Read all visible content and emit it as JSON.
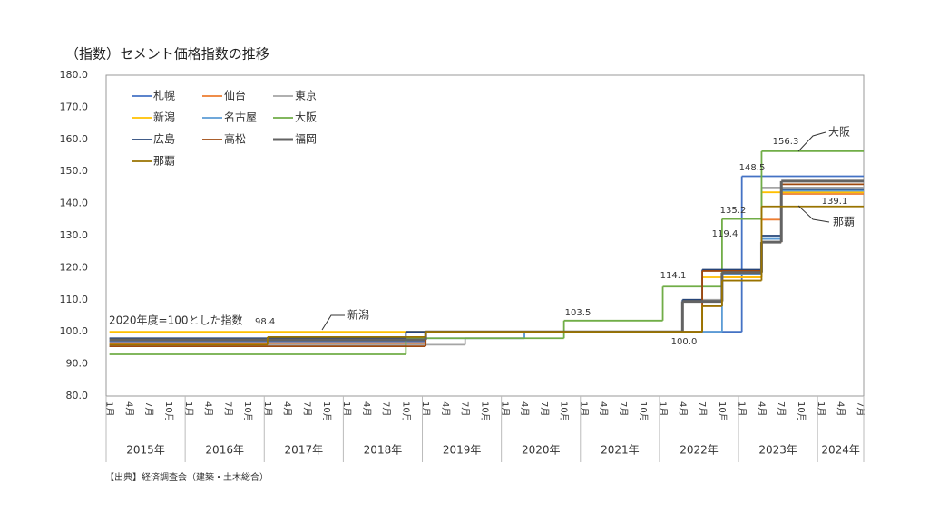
{
  "chart_data": {
    "type": "step-line",
    "title": "（指数）セメント価格指数の推移",
    "source": "【出典】経済調査会（建築・土木総合）",
    "xlim": [
      "2015-01",
      "2024-07"
    ],
    "ylim": [
      80,
      180
    ],
    "yticks": [
      {
        "value": 80,
        "label": "80.0"
      },
      {
        "value": 90,
        "label": "90.0"
      },
      {
        "value": 100,
        "label": "100.0"
      },
      {
        "value": 110,
        "label": "110.0"
      },
      {
        "value": 120,
        "label": "120.0"
      },
      {
        "value": 130,
        "label": "130.0"
      },
      {
        "value": 140,
        "label": "140.0"
      },
      {
        "value": 150,
        "label": "150.0"
      },
      {
        "value": 160,
        "label": "160.0"
      },
      {
        "value": 170,
        "label": "170.0"
      },
      {
        "value": 180,
        "label": "180.0"
      }
    ],
    "xticks": [
      {
        "value": "2015-01",
        "label": "1月"
      },
      {
        "value": "2015-04",
        "label": "4月"
      },
      {
        "value": "2015-07",
        "label": "7月"
      },
      {
        "value": "2015-10",
        "label": "10月"
      },
      {
        "value": "2016-01",
        "label": "1月"
      },
      {
        "value": "2016-04",
        "label": "4月"
      },
      {
        "value": "2016-07",
        "label": "7月"
      },
      {
        "value": "2016-10",
        "label": "10月"
      },
      {
        "value": "2017-01",
        "label": "1月"
      },
      {
        "value": "2017-04",
        "label": "4月"
      },
      {
        "value": "2017-07",
        "label": "7月"
      },
      {
        "value": "2017-10",
        "label": "10月"
      },
      {
        "value": "2018-01",
        "label": "1月"
      },
      {
        "value": "2018-04",
        "label": "4月"
      },
      {
        "value": "2018-07",
        "label": "7月"
      },
      {
        "value": "2018-10",
        "label": "10月"
      },
      {
        "value": "2019-01",
        "label": "1月"
      },
      {
        "value": "2019-04",
        "label": "4月"
      },
      {
        "value": "2019-07",
        "label": "7月"
      },
      {
        "value": "2019-10",
        "label": "10月"
      },
      {
        "value": "2020-01",
        "label": "1月"
      },
      {
        "value": "2020-04",
        "label": "4月"
      },
      {
        "value": "2020-07",
        "label": "7月"
      },
      {
        "value": "2020-10",
        "label": "10月"
      },
      {
        "value": "2021-01",
        "label": "1月"
      },
      {
        "value": "2021-04",
        "label": "4月"
      },
      {
        "value": "2021-07",
        "label": "7月"
      },
      {
        "value": "2021-10",
        "label": "10月"
      },
      {
        "value": "2022-01",
        "label": "1月"
      },
      {
        "value": "2022-04",
        "label": "4月"
      },
      {
        "value": "2022-07",
        "label": "7月"
      },
      {
        "value": "2022-10",
        "label": "10月"
      },
      {
        "value": "2023-01",
        "label": "1月"
      },
      {
        "value": "2023-04",
        "label": "4月"
      },
      {
        "value": "2023-07",
        "label": "7月"
      },
      {
        "value": "2023-10",
        "label": "10月"
      },
      {
        "value": "2024-01",
        "label": "1月"
      },
      {
        "value": "2024-04",
        "label": "4月"
      },
      {
        "value": "2024-07",
        "label": "7月"
      }
    ],
    "year_labels": [
      {
        "value": "2015",
        "label": "2015年"
      },
      {
        "value": "2016",
        "label": "2016年"
      },
      {
        "value": "2017",
        "label": "2017年"
      },
      {
        "value": "2018",
        "label": "2018年"
      },
      {
        "value": "2019",
        "label": "2019年"
      },
      {
        "value": "2020",
        "label": "2020年"
      },
      {
        "value": "2021",
        "label": "2021年"
      },
      {
        "value": "2022",
        "label": "2022年"
      },
      {
        "value": "2023",
        "label": "2023年"
      },
      {
        "value": "2024",
        "label": "2024年"
      }
    ],
    "series": [
      {
        "name": "札幌",
        "color": "#4472c4",
        "x": [
          "2015-01",
          "2019-01",
          "2023-01"
        ],
        "values": [
          97,
          100,
          148.5
        ]
      },
      {
        "name": "仙台",
        "color": "#ed7d31",
        "x": [
          "2015-01",
          "2019-01",
          "2022-07",
          "2022-10",
          "2023-04",
          "2023-07"
        ],
        "values": [
          96.5,
          100,
          108,
          117,
          135,
          143
        ]
      },
      {
        "name": "東京",
        "color": "#a5a5a5",
        "x": [
          "2015-01",
          "2019-07",
          "2020-04",
          "2022-04",
          "2022-10",
          "2023-04"
        ],
        "values": [
          96,
          98,
          100,
          110,
          118,
          145
        ]
      },
      {
        "name": "新潟",
        "color": "#ffc000",
        "x": [
          "2015-01",
          "2022-07",
          "2023-04"
        ],
        "values": [
          100,
          117,
          143.5
        ]
      },
      {
        "name": "名古屋",
        "color": "#5b9bd5",
        "x": [
          "2015-01",
          "2018-10",
          "2020-04",
          "2022-10",
          "2023-04",
          "2023-07"
        ],
        "values": [
          95.5,
          98,
          100,
          118,
          129,
          144
        ]
      },
      {
        "name": "大阪",
        "color": "#70ad47",
        "x": [
          "2015-01",
          "2018-10",
          "2020-10",
          "2022-01",
          "2022-10",
          "2023-04"
        ],
        "values": [
          93,
          98,
          103.5,
          114.1,
          135.2,
          156.3
        ]
      },
      {
        "name": "広島",
        "color": "#264478",
        "x": [
          "2015-01",
          "2018-10",
          "2022-04",
          "2022-07",
          "2023-04",
          "2023-07"
        ],
        "values": [
          98,
          100,
          110,
          119.4,
          130,
          144.5
        ]
      },
      {
        "name": "高松",
        "color": "#9e480e",
        "x": [
          "2015-01",
          "2019-01",
          "2022-07",
          "2023-04",
          "2023-07"
        ],
        "values": [
          95.5,
          100,
          119,
          128,
          146
        ]
      },
      {
        "name": "福岡",
        "color": "#636363",
        "x": [
          "2015-01",
          "2019-01",
          "2022-04",
          "2022-10",
          "2023-04",
          "2023-07"
        ],
        "values": [
          97.5,
          100,
          109.5,
          118.5,
          128,
          147
        ]
      },
      {
        "name": "那覇",
        "color": "#997300",
        "x": [
          "2015-01",
          "2017-01",
          "2019-01",
          "2022-07",
          "2022-10",
          "2023-04"
        ],
        "values": [
          96,
          98.4,
          100,
          108,
          116,
          139.1
        ]
      }
    ],
    "annotations": [
      "2020年度=100とした指数",
      "98.4",
      "新潟",
      "103.5",
      "114.1",
      "100.0",
      "119.4",
      "135.2",
      "148.5",
      "156.3",
      "139.1",
      "大阪",
      "那覇"
    ]
  }
}
